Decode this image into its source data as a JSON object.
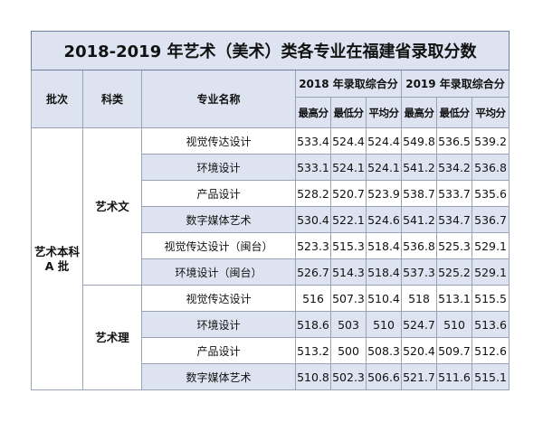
{
  "title": "2018-2019 年艺术（美术）类各专业在福建省录取分数",
  "headers": {
    "batch": "批次",
    "category": "科类",
    "major": "专业名称",
    "year2018": "2018 年录取综合分",
    "year2019": "2019 年录取综合分",
    "max": "最高分",
    "min": "最低分",
    "avg": "平均分"
  },
  "batch_label": "艺术本科A 批",
  "categories": [
    "艺术文",
    "艺术理"
  ],
  "rows": [
    {
      "major": "视觉传达设计",
      "y2018": [
        "533.4",
        "524.4",
        "524.4"
      ],
      "y2019": [
        "549.8",
        "536.5",
        "539.2"
      ]
    },
    {
      "major": "环境设计",
      "y2018": [
        "533.1",
        "524.1",
        "524.1"
      ],
      "y2019": [
        "541.2",
        "534.2",
        "536.8"
      ]
    },
    {
      "major": "产品设计",
      "y2018": [
        "528.2",
        "520.7",
        "523.9"
      ],
      "y2019": [
        "538.7",
        "533.7",
        "535.6"
      ]
    },
    {
      "major": "数字媒体艺术",
      "y2018": [
        "530.4",
        "522.1",
        "524.6"
      ],
      "y2019": [
        "541.2",
        "534.7",
        "536.7"
      ]
    },
    {
      "major": "视觉传达设计（闽台）",
      "y2018": [
        "523.3",
        "515.3",
        "518.4"
      ],
      "y2019": [
        "536.8",
        "525.3",
        "529.1"
      ]
    },
    {
      "major": "环境设计（闽台）",
      "y2018": [
        "526.7",
        "514.3",
        "518.4"
      ],
      "y2019": [
        "537.3",
        "525.2",
        "529.1"
      ]
    },
    {
      "major": "视觉传达设计",
      "y2018": [
        "516",
        "507.3",
        "510.4"
      ],
      "y2019": [
        "518",
        "513.1",
        "515.5"
      ]
    },
    {
      "major": "环境设计",
      "y2018": [
        "518.6",
        "503",
        "510"
      ],
      "y2019": [
        "524.7",
        "510",
        "513.6"
      ]
    },
    {
      "major": "产品设计",
      "y2018": [
        "513.2",
        "500",
        "508.3"
      ],
      "y2019": [
        "520.4",
        "509.7",
        "512.6"
      ]
    },
    {
      "major": "数字媒体艺术",
      "y2018": [
        "510.8",
        "502.3",
        "506.6"
      ],
      "y2019": [
        "521.7",
        "511.6",
        "515.1"
      ]
    }
  ]
}
